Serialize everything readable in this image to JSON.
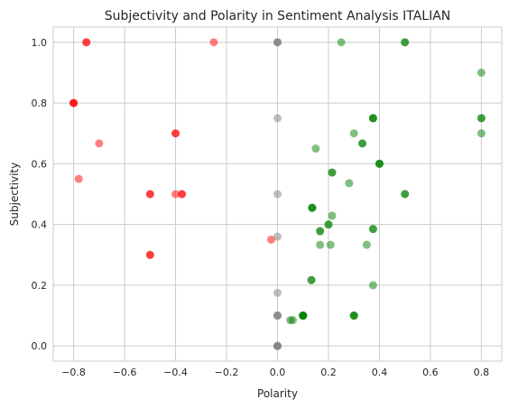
{
  "chart_data": {
    "type": "scatter",
    "title": "Subjectivity and Polarity in Sentiment Analysis ITALIAN",
    "xlabel": "Polarity",
    "ylabel": "Subjectivity",
    "xlim": [
      -0.88,
      0.88
    ],
    "ylim": [
      -0.05,
      1.05
    ],
    "xticks": [
      -0.8,
      -0.6,
      -0.4,
      -0.2,
      0.0,
      0.2,
      0.4,
      0.6,
      0.8
    ],
    "xtick_labels": [
      "−0.8",
      "−0.6",
      "−0.4",
      "−0.2",
      "0.0",
      "0.2",
      "0.4",
      "0.6",
      "0.8"
    ],
    "yticks": [
      0.0,
      0.2,
      0.4,
      0.6,
      0.8,
      1.0
    ],
    "ytick_labels": [
      "0.0",
      "0.2",
      "0.4",
      "0.6",
      "0.8",
      "1.0"
    ],
    "grid": true,
    "marker_opacity": 0.5,
    "series": [
      {
        "color": "#ff0000",
        "points": [
          [
            -0.75,
            1.0
          ],
          [
            -0.75,
            1.0
          ],
          [
            -0.25,
            1.0
          ],
          [
            -0.8,
            0.8
          ],
          [
            -0.8,
            0.8
          ],
          [
            -0.8,
            0.8
          ],
          [
            -0.4,
            0.7
          ],
          [
            -0.4,
            0.7
          ],
          [
            -0.7,
            0.667
          ],
          [
            -0.78,
            0.55
          ],
          [
            -0.5,
            0.5
          ],
          [
            -0.5,
            0.5
          ],
          [
            -0.4,
            0.5
          ],
          [
            -0.375,
            0.5
          ],
          [
            -0.375,
            0.5
          ],
          [
            -0.5,
            0.3
          ],
          [
            -0.5,
            0.3
          ],
          [
            -0.025,
            0.35
          ]
        ]
      },
      {
        "color": "#808080",
        "points": [
          [
            0.0,
            1.0
          ],
          [
            0.0,
            1.0
          ],
          [
            0.0,
            1.0
          ],
          [
            0.0,
            0.75
          ],
          [
            0.0,
            0.5
          ],
          [
            0.0,
            0.36
          ],
          [
            0.0,
            0.175
          ],
          [
            0.0,
            0.1
          ],
          [
            0.0,
            0.1
          ],
          [
            0.0,
            0.1
          ],
          [
            0.0,
            0.0
          ],
          [
            0.0,
            0.0
          ],
          [
            0.0,
            0.0
          ],
          [
            0.0,
            0.0
          ]
        ]
      },
      {
        "color": "#008000",
        "points": [
          [
            0.25,
            1.0
          ],
          [
            0.5,
            1.0
          ],
          [
            0.5,
            1.0
          ],
          [
            0.8,
            0.9
          ],
          [
            0.375,
            0.75
          ],
          [
            0.375,
            0.75
          ],
          [
            0.375,
            0.75
          ],
          [
            0.8,
            0.75
          ],
          [
            0.8,
            0.75
          ],
          [
            0.8,
            0.7
          ],
          [
            0.3,
            0.7
          ],
          [
            0.333,
            0.667
          ],
          [
            0.333,
            0.667
          ],
          [
            0.15,
            0.65
          ],
          [
            0.4,
            0.6
          ],
          [
            0.4,
            0.6
          ],
          [
            0.4,
            0.6
          ],
          [
            0.214,
            0.571
          ],
          [
            0.214,
            0.571
          ],
          [
            0.281,
            0.536
          ],
          [
            0.5,
            0.5
          ],
          [
            0.5,
            0.5
          ],
          [
            0.136,
            0.455
          ],
          [
            0.136,
            0.455
          ],
          [
            0.136,
            0.455
          ],
          [
            0.214,
            0.429
          ],
          [
            0.2,
            0.4
          ],
          [
            0.2,
            0.4
          ],
          [
            0.375,
            0.385
          ],
          [
            0.375,
            0.385
          ],
          [
            0.167,
            0.378
          ],
          [
            0.167,
            0.378
          ],
          [
            0.167,
            0.333
          ],
          [
            0.208,
            0.333
          ],
          [
            0.35,
            0.333
          ],
          [
            0.133,
            0.217
          ],
          [
            0.133,
            0.217
          ],
          [
            0.375,
            0.2
          ],
          [
            0.1,
            0.1
          ],
          [
            0.1,
            0.1
          ],
          [
            0.1,
            0.1
          ],
          [
            0.1,
            0.1
          ],
          [
            0.1,
            0.1
          ],
          [
            0.05,
            0.085
          ],
          [
            0.06,
            0.085
          ],
          [
            0.3,
            0.1
          ],
          [
            0.3,
            0.1
          ],
          [
            0.3,
            0.1
          ]
        ]
      }
    ]
  }
}
